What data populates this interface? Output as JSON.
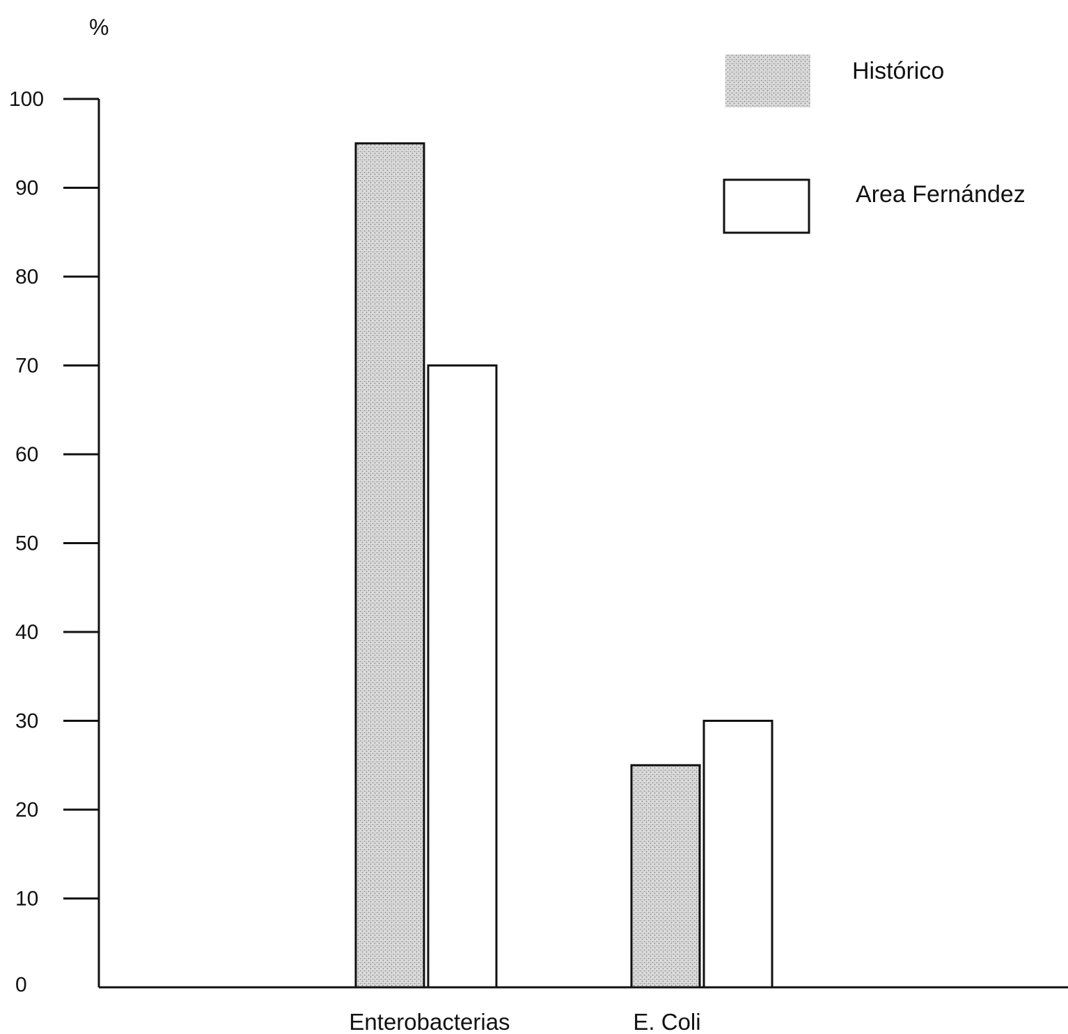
{
  "chart_data": {
    "type": "bar",
    "ylabel": "%",
    "categories": [
      "Enterobacterias",
      "E. Coli"
    ],
    "series": [
      {
        "name": "Histórico",
        "values": [
          95,
          25
        ],
        "pattern": "stipple"
      },
      {
        "name": "Area Fernández",
        "values": [
          70,
          30
        ],
        "pattern": "none"
      }
    ],
    "ylim": [
      0,
      100
    ],
    "yticks": [
      0,
      10,
      20,
      30,
      40,
      50,
      60,
      70,
      80,
      90,
      100
    ],
    "grid": false,
    "legend_position": "top-right",
    "colors": {
      "axis": "#111111",
      "stipple_bg": "#dcdcdc",
      "stipple_dot": "#8a8a8a",
      "hollow_fill": "#ffffff"
    }
  }
}
